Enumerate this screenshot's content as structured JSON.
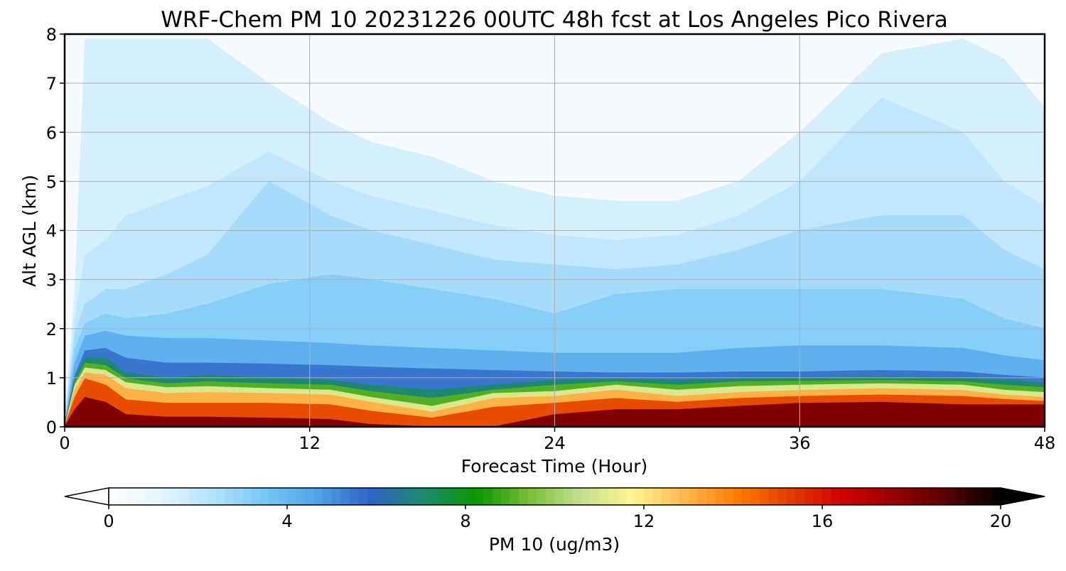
{
  "chart_data": {
    "type": "heatmap",
    "title": "WRF-Chem PM 10  20231226 00UTC 48h fcst at Los Angeles Pico Rivera",
    "xlabel": "Forecast Time (Hour)",
    "ylabel": "Alt AGL (km)",
    "xlim": [
      0,
      48
    ],
    "ylim": [
      0,
      8
    ],
    "xticks": [
      "0",
      "12",
      "24",
      "36",
      "48"
    ],
    "yticks": [
      "0",
      "1",
      "2",
      "3",
      "4",
      "5",
      "6",
      "7",
      "8"
    ],
    "grid": true,
    "colorbar": {
      "label": "PM 10  (ug/m3)",
      "range": [
        0,
        20
      ],
      "ticks": [
        "0",
        "4",
        "8",
        "12",
        "16",
        "20"
      ],
      "extend": "both",
      "orientation": "horizontal",
      "colors": [
        "#ffffff",
        "#e3f4fd",
        "#b3e2fb",
        "#74c6f5",
        "#4ea2e6",
        "#2f62c4",
        "#1d8a6d",
        "#089600",
        "#76be38",
        "#c4e08e",
        "#fff492",
        "#ffb64a",
        "#ff7b00",
        "#e03c00",
        "#d00000",
        "#960000",
        "#560000",
        "#000000"
      ]
    },
    "x_hours": [
      0,
      0.5,
      1,
      2,
      3,
      5,
      7,
      10,
      13,
      15,
      18,
      21,
      24,
      27,
      30,
      33,
      36,
      40,
      44,
      46,
      48
    ],
    "isolines": [
      {
        "level": 1.5,
        "alt_km": [
          0,
          2.8,
          7.9,
          7.9,
          7.9,
          7.9,
          7.9,
          7.0,
          6.2,
          5.8,
          5.5,
          5.0,
          4.7,
          4.6,
          4.6,
          5.0,
          6.0,
          7.6,
          7.9,
          7.5,
          6.5
        ]
      },
      {
        "level": 2.0,
        "alt_km": [
          0,
          2.2,
          3.5,
          3.8,
          4.3,
          4.6,
          4.9,
          5.6,
          5.0,
          4.7,
          4.4,
          4.1,
          3.9,
          3.8,
          3.9,
          4.3,
          5.0,
          6.7,
          6.0,
          5.0,
          4.5
        ]
      },
      {
        "level": 2.6,
        "alt_km": [
          0,
          1.9,
          2.5,
          2.8,
          2.8,
          3.1,
          3.5,
          5.0,
          4.3,
          4.0,
          3.7,
          3.4,
          3.3,
          3.2,
          3.3,
          3.6,
          4.0,
          4.3,
          4.3,
          3.6,
          3.2
        ]
      },
      {
        "level": 3.2,
        "alt_km": [
          0,
          1.6,
          2.1,
          2.3,
          2.2,
          2.3,
          2.5,
          2.9,
          3.1,
          3.0,
          2.8,
          2.6,
          2.3,
          2.7,
          2.8,
          2.8,
          2.8,
          2.8,
          2.6,
          2.2,
          2.0
        ]
      },
      {
        "level": 4.2,
        "alt_km": [
          0,
          1.3,
          1.85,
          1.95,
          1.85,
          1.8,
          1.8,
          1.75,
          1.7,
          1.65,
          1.6,
          1.55,
          1.5,
          1.5,
          1.5,
          1.6,
          1.65,
          1.65,
          1.6,
          1.45,
          1.35
        ]
      },
      {
        "level": 5.5,
        "alt_km": [
          0,
          1.05,
          1.55,
          1.6,
          1.4,
          1.3,
          1.3,
          1.28,
          1.25,
          1.22,
          1.18,
          1.15,
          1.12,
          1.1,
          1.1,
          1.12,
          1.12,
          1.15,
          1.12,
          1.05,
          1.0
        ]
      },
      {
        "level": 7.0,
        "alt_km": [
          0,
          0.95,
          1.4,
          1.4,
          1.1,
          1.0,
          1.05,
          1.0,
          0.95,
          0.85,
          0.75,
          0.85,
          0.95,
          0.98,
          0.95,
          0.98,
          1.0,
          1.02,
          1.0,
          0.95,
          0.9
        ]
      },
      {
        "level": 9.0,
        "alt_km": [
          0,
          0.9,
          1.3,
          1.25,
          0.98,
          0.88,
          0.92,
          0.88,
          0.85,
          0.72,
          0.58,
          0.75,
          0.85,
          0.92,
          0.85,
          0.92,
          0.93,
          0.95,
          0.92,
          0.85,
          0.8
        ]
      },
      {
        "level": 11.0,
        "alt_km": [
          0,
          0.85,
          1.2,
          1.15,
          0.9,
          0.8,
          0.82,
          0.78,
          0.75,
          0.6,
          0.42,
          0.68,
          0.72,
          0.85,
          0.75,
          0.82,
          0.85,
          0.88,
          0.85,
          0.75,
          0.7
        ]
      },
      {
        "level": 13.0,
        "alt_km": [
          0,
          0.75,
          1.1,
          1.05,
          0.78,
          0.68,
          0.7,
          0.68,
          0.65,
          0.5,
          0.3,
          0.58,
          0.62,
          0.75,
          0.62,
          0.7,
          0.74,
          0.78,
          0.74,
          0.65,
          0.6
        ]
      },
      {
        "level": 15.0,
        "alt_km": [
          0,
          0.6,
          0.98,
          0.85,
          0.55,
          0.48,
          0.48,
          0.48,
          0.45,
          0.32,
          0.18,
          0.4,
          0.48,
          0.58,
          0.5,
          0.58,
          0.62,
          0.65,
          0.62,
          0.56,
          0.52
        ]
      },
      {
        "level": 18.0,
        "alt_km": [
          0,
          0.35,
          0.6,
          0.5,
          0.25,
          0.2,
          0.2,
          0.18,
          0.15,
          0.05,
          0,
          0,
          0.25,
          0.35,
          0.35,
          0.42,
          0.48,
          0.5,
          0.45,
          0.45,
          0.45
        ]
      }
    ]
  }
}
